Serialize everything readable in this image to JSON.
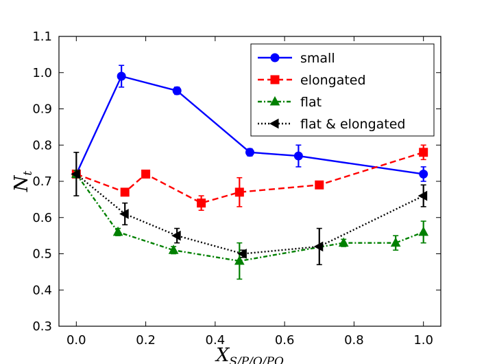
{
  "chart_data": {
    "type": "line",
    "xlabel_main": "X",
    "xlabel_sub": "S/P/O/PO",
    "ylabel_main": "N",
    "ylabel_sub": "t",
    "xlim": [
      -0.05,
      1.05
    ],
    "ylim": [
      0.3,
      1.1
    ],
    "xticks": [
      0.0,
      0.2,
      0.4,
      0.6,
      0.8,
      1.0
    ],
    "xtick_labels": [
      "0.0",
      "0.2",
      "0.4",
      "0.6",
      "0.8",
      "1.0"
    ],
    "yticks": [
      0.3,
      0.4,
      0.5,
      0.6,
      0.7,
      0.8,
      0.9,
      1.0,
      1.1
    ],
    "ytick_labels": [
      "0.3",
      "0.4",
      "0.5",
      "0.6",
      "0.7",
      "0.8",
      "0.9",
      "1.0",
      "1.1"
    ],
    "grid": false,
    "legend_position": "top-right",
    "series": [
      {
        "name": "small",
        "color": "#0000ff",
        "marker": "circle",
        "linestyle": "solid",
        "x": [
          0.0,
          0.13,
          0.29,
          0.5,
          0.64,
          1.0
        ],
        "y": [
          0.72,
          0.99,
          0.95,
          0.78,
          0.77,
          0.72
        ],
        "err": [
          0.01,
          0.03,
          0.01,
          0.01,
          0.03,
          0.02
        ]
      },
      {
        "name": "elongated",
        "color": "#ff0000",
        "marker": "square",
        "linestyle": "dashed",
        "x": [
          0.0,
          0.14,
          0.2,
          0.36,
          0.47,
          0.7,
          1.0
        ],
        "y": [
          0.72,
          0.67,
          0.72,
          0.64,
          0.67,
          0.69,
          0.78
        ],
        "err": [
          0.01,
          0.01,
          0.01,
          0.02,
          0.04,
          0.01,
          0.02
        ]
      },
      {
        "name": "flat",
        "color": "#008000",
        "marker": "triangle-up",
        "linestyle": "dashdot",
        "x": [
          0.0,
          0.12,
          0.28,
          0.47,
          0.77,
          0.92,
          1.0
        ],
        "y": [
          0.72,
          0.56,
          0.51,
          0.48,
          0.53,
          0.53,
          0.56
        ],
        "err": [
          0.01,
          0.01,
          0.01,
          0.05,
          0.01,
          0.02,
          0.03
        ]
      },
      {
        "name": "flat & elongated",
        "color": "#000000",
        "marker": "triangle-left",
        "linestyle": "dotted",
        "x": [
          0.0,
          0.14,
          0.29,
          0.48,
          0.7,
          1.0
        ],
        "y": [
          0.72,
          0.61,
          0.55,
          0.5,
          0.52,
          0.66
        ],
        "err": [
          0.06,
          0.03,
          0.02,
          0.01,
          0.05,
          0.03
        ]
      }
    ]
  }
}
